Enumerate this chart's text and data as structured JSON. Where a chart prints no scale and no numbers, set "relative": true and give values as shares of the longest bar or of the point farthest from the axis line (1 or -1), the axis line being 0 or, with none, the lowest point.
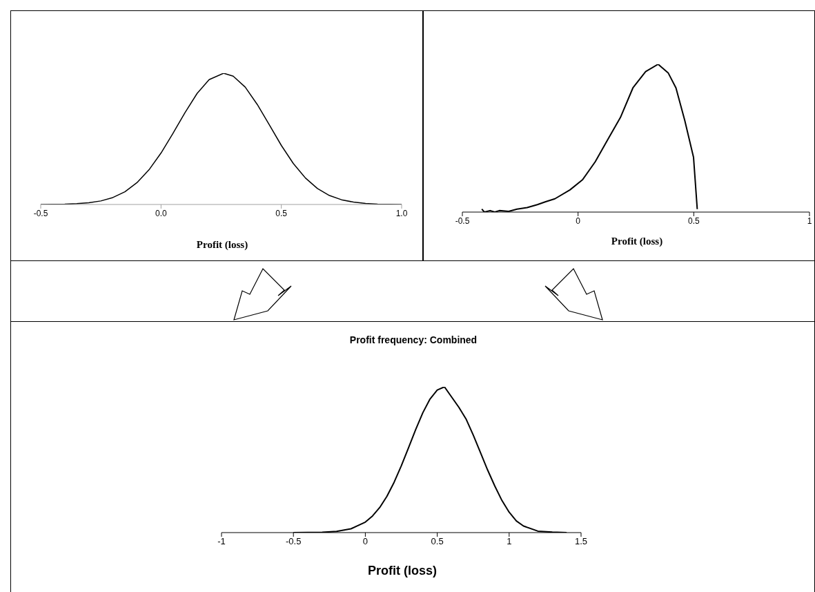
{
  "chart_data": [
    {
      "type": "line",
      "xlabel": "Profit (loss)",
      "relative": true,
      "xlim": [
        -0.5,
        1.0
      ],
      "xticks": [
        {
          "value": -0.5,
          "label": "-0.5"
        },
        {
          "value": 0,
          "label": "0.0"
        },
        {
          "value": 0.5,
          "label": "0.5"
        },
        {
          "value": 1.0,
          "label": "1.0"
        }
      ],
      "color": "#000000",
      "x": [
        -0.5,
        -0.45,
        -0.4,
        -0.35,
        -0.3,
        -0.25,
        -0.2,
        -0.15,
        -0.1,
        -0.05,
        0,
        0.05,
        0.1,
        0.15,
        0.2,
        0.26,
        0.3,
        0.35,
        0.4,
        0.45,
        0.5,
        0.55,
        0.6,
        0.65,
        0.7,
        0.75,
        0.8,
        0.85,
        0.9,
        0.95,
        1.0
      ],
      "values": [
        0,
        0.001,
        0.002,
        0.006,
        0.013,
        0.027,
        0.053,
        0.097,
        0.166,
        0.264,
        0.392,
        0.543,
        0.701,
        0.846,
        0.951,
        1,
        0.978,
        0.894,
        0.762,
        0.607,
        0.45,
        0.312,
        0.202,
        0.122,
        0.068,
        0.036,
        0.018,
        0.008,
        0.003,
        0.001,
        0
      ]
    },
    {
      "type": "line",
      "xlabel": "Profit (loss)",
      "relative": true,
      "xlim": [
        -0.5,
        1
      ],
      "xticks": [
        -0.5,
        0,
        0.5,
        1
      ],
      "color": "#000000",
      "x": [
        -0.416,
        -0.405,
        -0.38,
        -0.36,
        -0.34,
        -0.3,
        -0.264,
        -0.22,
        -0.176,
        -0.14,
        -0.1,
        -0.035,
        0.02,
        0.074,
        0.128,
        0.183,
        0.237,
        0.292,
        0.346,
        0.39,
        0.423,
        0.461,
        0.499,
        0.515
      ],
      "values": [
        0.02,
        0,
        0.01,
        0,
        0.01,
        0.005,
        0.02,
        0.03,
        0.05,
        0.07,
        0.09,
        0.15,
        0.22,
        0.34,
        0.49,
        0.64,
        0.84,
        0.95,
        1,
        0.94,
        0.84,
        0.62,
        0.37,
        0.02
      ]
    },
    {
      "type": "line",
      "title": "Profit frequency: Combined",
      "xlabel": "Profit (loss)",
      "relative": true,
      "xlim": [
        -1,
        1.5
      ],
      "xticks": [
        -1,
        -0.5,
        0,
        0.5,
        1,
        1.5
      ],
      "color": "#000000",
      "x": [
        -0.5,
        -0.3,
        -0.2,
        -0.1,
        0,
        0.05,
        0.1,
        0.15,
        0.2,
        0.25,
        0.3,
        0.35,
        0.4,
        0.45,
        0.5,
        0.55,
        0.6,
        0.65,
        0.7,
        0.75,
        0.8,
        0.85,
        0.9,
        0.95,
        1.0,
        1.05,
        1.1,
        1.2,
        1.3,
        1.4
      ],
      "values": [
        0,
        0.002,
        0.008,
        0.026,
        0.072,
        0.114,
        0.172,
        0.249,
        0.345,
        0.458,
        0.581,
        0.707,
        0.823,
        0.917,
        0.978,
        1,
        0.93,
        0.86,
        0.78,
        0.67,
        0.55,
        0.43,
        0.32,
        0.22,
        0.14,
        0.08,
        0.045,
        0.01,
        0.003,
        0
      ]
    }
  ]
}
